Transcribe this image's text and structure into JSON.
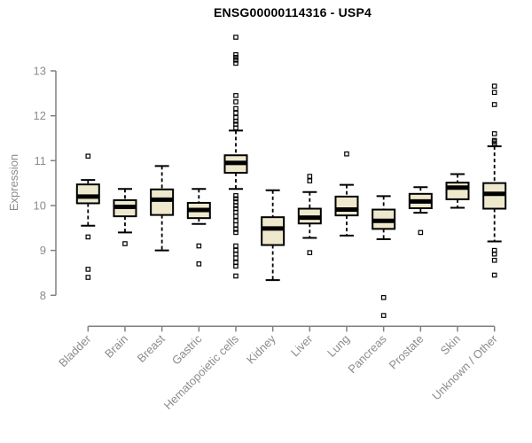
{
  "title": "ENSG00000114316 - USP4",
  "chart_data": {
    "type": "box",
    "title": "ENSG00000114316 - USP4",
    "ylabel": "Expression",
    "xlabel": "",
    "ylim": [
      7.4,
      13.9
    ],
    "yticks": [
      8,
      9,
      10,
      11,
      12,
      13
    ],
    "grid": false,
    "legend": "none",
    "colors": {
      "box_fill": "#EEE8CD",
      "box_stroke": "#000000",
      "median": "#000000",
      "axis": "#808080",
      "tick_labels": "#8C8C8C",
      "title": "#000000",
      "background": "#FFFFFF"
    },
    "categories": [
      "Bladder",
      "Brain",
      "Breast",
      "Gastric",
      "Hematopoietic cells",
      "Kidney",
      "Liver",
      "Lung",
      "Pancreas",
      "Prostate",
      "Skin",
      "Unknown / Other"
    ],
    "series": [
      {
        "name": "Bladder",
        "whisker_low": 9.55,
        "q1": 10.05,
        "median": 10.2,
        "q3": 10.47,
        "whisker_high": 10.57,
        "outliers": [
          11.1,
          9.3,
          8.58,
          8.4
        ]
      },
      {
        "name": "Brain",
        "whisker_low": 9.4,
        "q1": 9.76,
        "median": 9.97,
        "q3": 10.12,
        "whisker_high": 10.37,
        "outliers": [
          9.15
        ]
      },
      {
        "name": "Breast",
        "whisker_low": 9.0,
        "q1": 9.79,
        "median": 10.13,
        "q3": 10.36,
        "whisker_high": 10.88,
        "outliers": []
      },
      {
        "name": "Gastric",
        "whisker_low": 9.59,
        "q1": 9.72,
        "median": 9.9,
        "q3": 10.06,
        "whisker_high": 10.37,
        "outliers": [
          9.1,
          8.7
        ]
      },
      {
        "name": "Hematopoietic cells",
        "whisker_low": 10.37,
        "q1": 10.73,
        "median": 10.95,
        "q3": 11.12,
        "whisker_high": 11.67,
        "outliers": [
          13.75,
          13.36,
          13.3,
          13.24,
          13.17,
          12.45,
          12.31,
          12.16,
          12.06,
          11.96,
          11.88,
          11.81,
          11.73,
          10.22,
          10.15,
          10.08,
          10.0,
          9.93,
          9.85,
          9.76,
          9.66,
          9.57,
          9.47,
          9.4,
          9.1,
          9.0,
          8.92,
          8.83,
          8.73,
          8.65,
          8.43
        ]
      },
      {
        "name": "Kidney",
        "whisker_low": 8.34,
        "q1": 9.12,
        "median": 9.49,
        "q3": 9.74,
        "whisker_high": 10.34,
        "outliers": []
      },
      {
        "name": "Liver",
        "whisker_low": 9.28,
        "q1": 9.6,
        "median": 9.73,
        "q3": 9.93,
        "whisker_high": 10.3,
        "outliers": [
          10.65,
          10.55,
          8.95
        ]
      },
      {
        "name": "Lung",
        "whisker_low": 9.33,
        "q1": 9.78,
        "median": 9.91,
        "q3": 10.2,
        "whisker_high": 10.46,
        "outliers": [
          11.15
        ]
      },
      {
        "name": "Pancreas",
        "whisker_low": 9.25,
        "q1": 9.48,
        "median": 9.66,
        "q3": 9.91,
        "whisker_high": 10.21,
        "outliers": [
          7.95,
          7.55
        ]
      },
      {
        "name": "Prostate",
        "whisker_low": 9.84,
        "q1": 9.94,
        "median": 10.09,
        "q3": 10.26,
        "whisker_high": 10.41,
        "outliers": [
          9.4
        ]
      },
      {
        "name": "Skin",
        "whisker_low": 9.95,
        "q1": 10.14,
        "median": 10.4,
        "q3": 10.51,
        "whisker_high": 10.7,
        "outliers": []
      },
      {
        "name": "Unknown / Other",
        "whisker_low": 9.2,
        "q1": 9.93,
        "median": 10.26,
        "q3": 10.5,
        "whisker_high": 11.32,
        "outliers": [
          12.66,
          12.52,
          12.25,
          11.6,
          11.45,
          11.42,
          11.38,
          9.0,
          8.92,
          8.78,
          8.45
        ]
      }
    ]
  }
}
